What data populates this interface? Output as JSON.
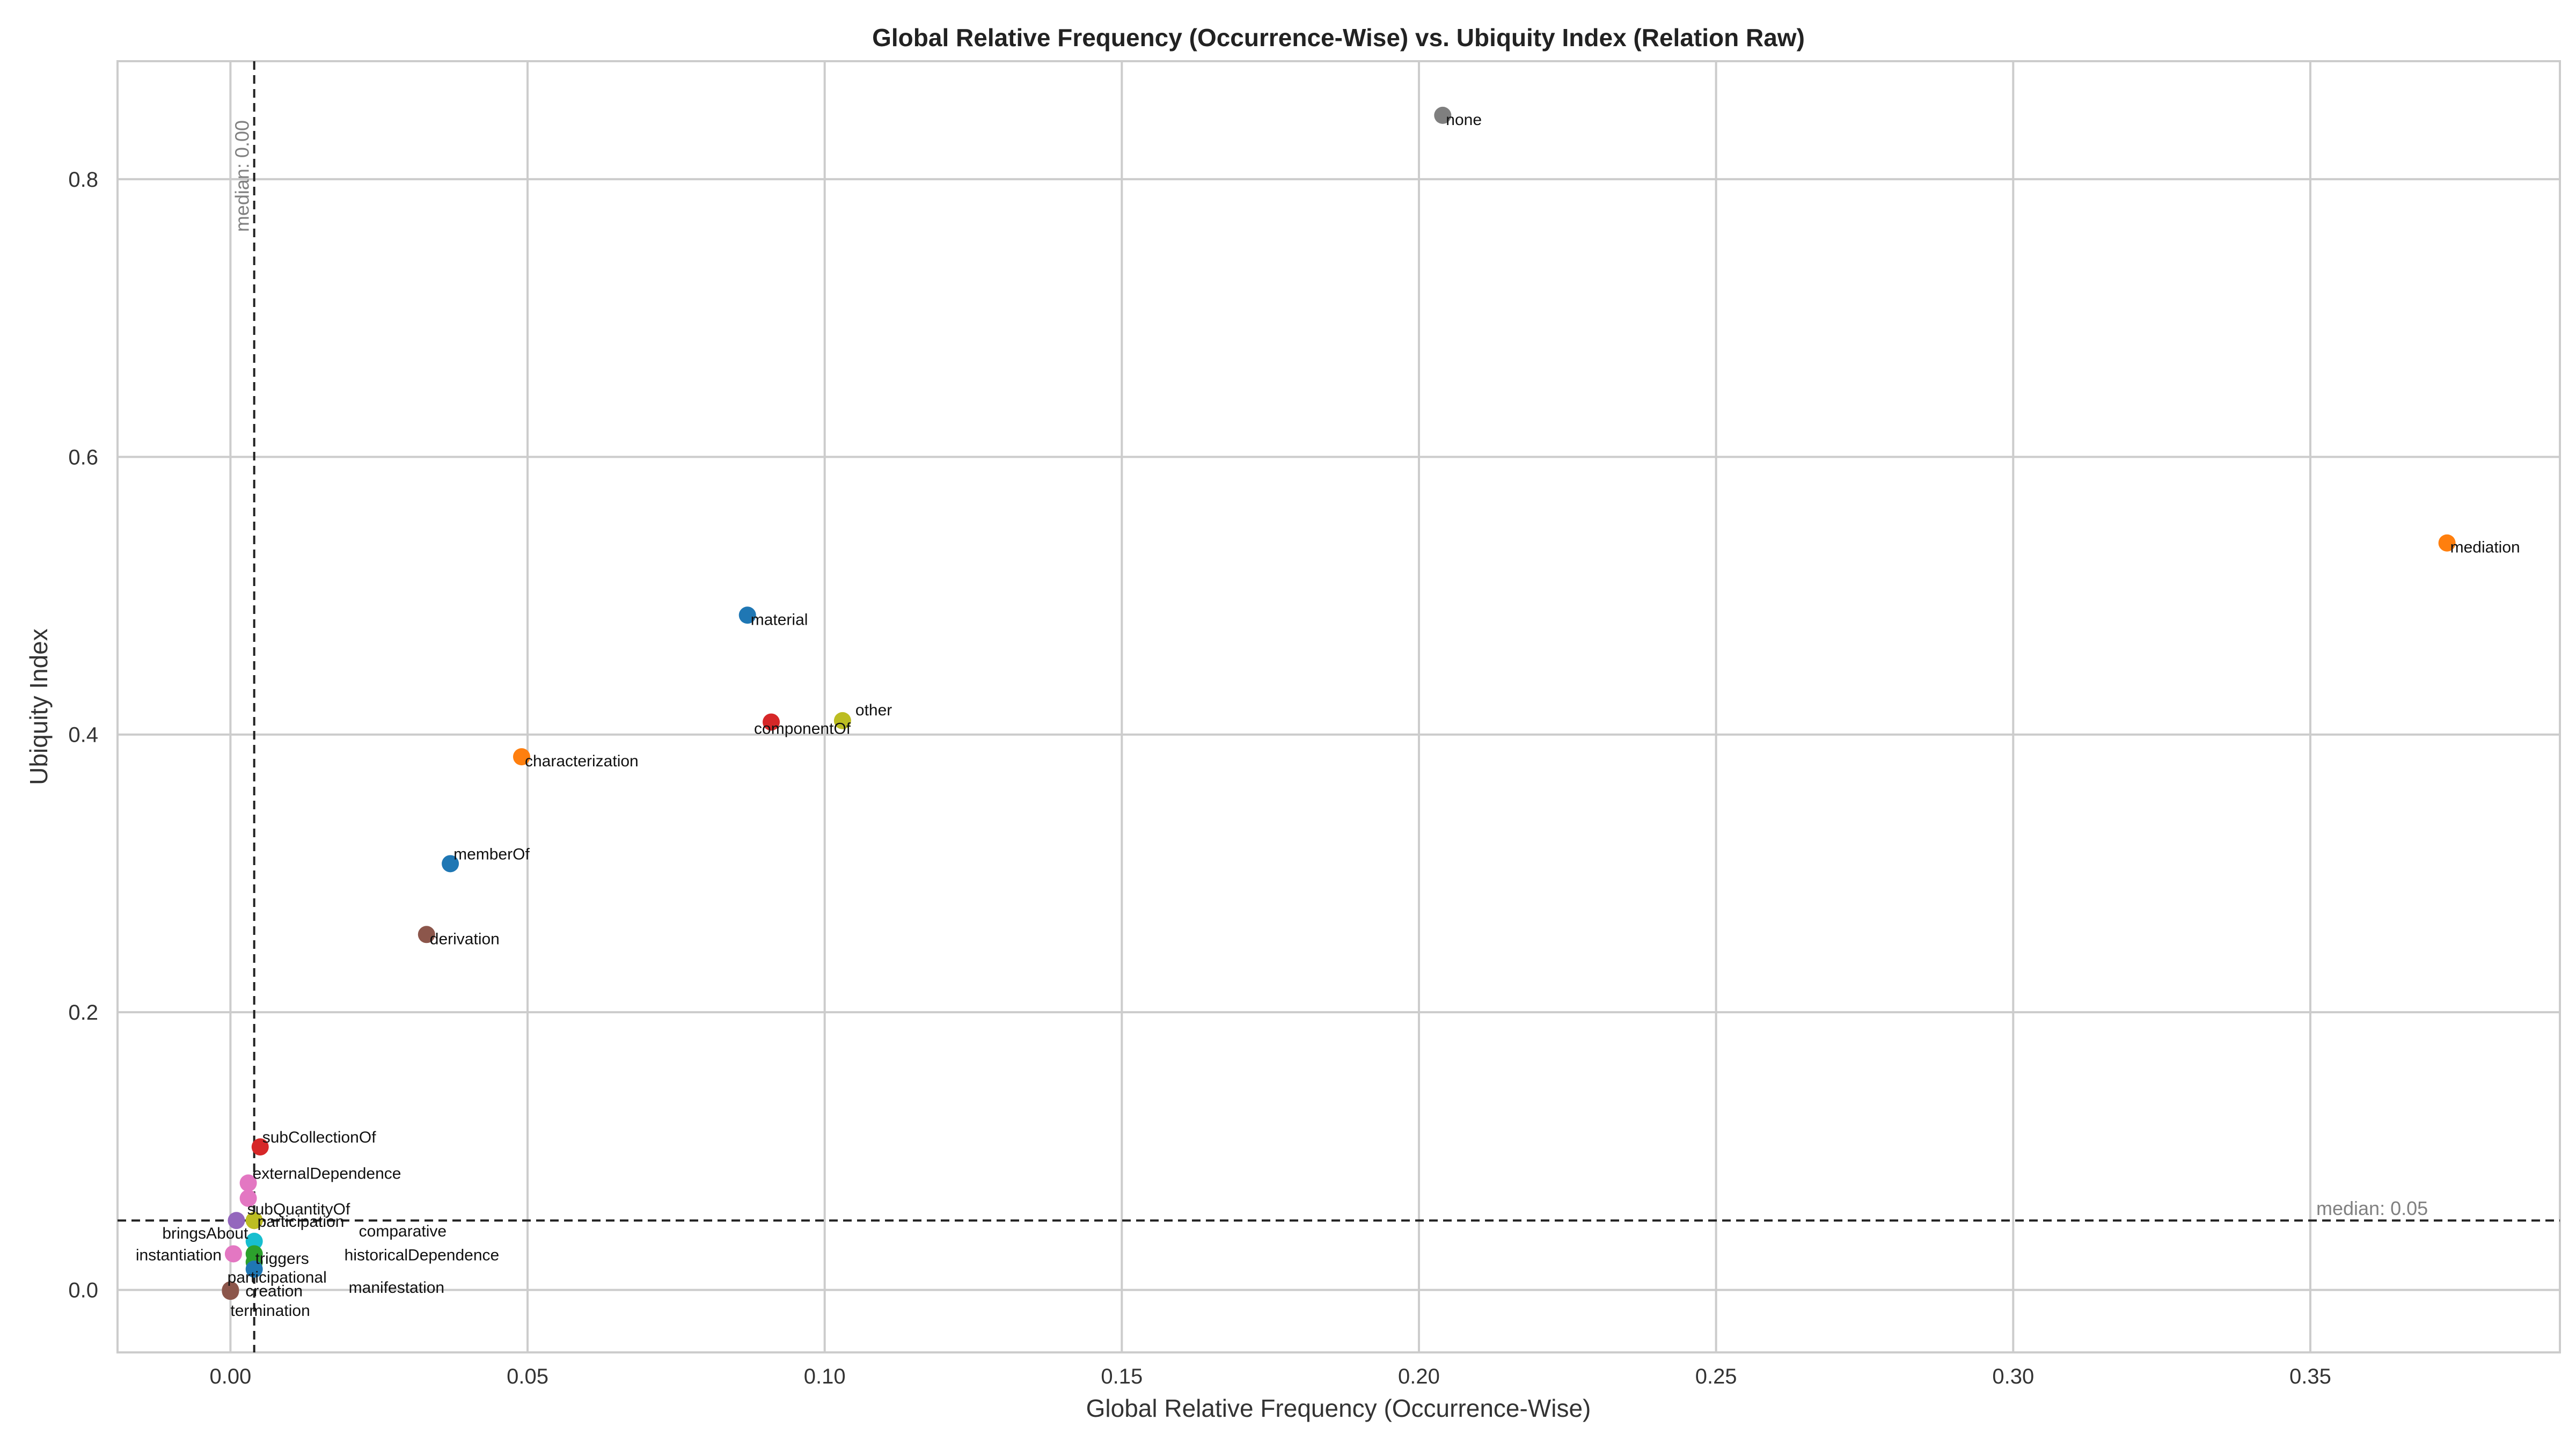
{
  "chart_data": {
    "type": "scatter",
    "title": "Global Relative Frequency (Occurrence-Wise) vs. Ubiquity Index (Relation Raw)",
    "xlabel": "Global Relative Frequency (Occurrence-Wise)",
    "ylabel": "Ubiquity Index",
    "xlim": [
      -0.019,
      0.392
    ],
    "ylim": [
      -0.045,
      0.885
    ],
    "x_ticks": [
      "0.00",
      "0.05",
      "0.10",
      "0.15",
      "0.20",
      "0.25",
      "0.30",
      "0.35"
    ],
    "x_tick_values": [
      0,
      0.05,
      0.1,
      0.15,
      0.2,
      0.25,
      0.3,
      0.35
    ],
    "y_ticks": [
      "0.0",
      "0.2",
      "0.4",
      "0.6",
      "0.8"
    ],
    "y_tick_values": [
      0,
      0.2,
      0.4,
      0.6,
      0.8
    ],
    "grid": true,
    "median_x": {
      "value": 0.004,
      "label": "median: 0.00"
    },
    "median_y": {
      "value": 0.05,
      "label": "median: 0.05"
    },
    "points": [
      {
        "label": "none",
        "x": 0.204,
        "y": 0.846,
        "color": "#7f7f7f"
      },
      {
        "label": "mediation",
        "x": 0.373,
        "y": 0.538,
        "color": "#ff7f0e"
      },
      {
        "label": "material",
        "x": 0.087,
        "y": 0.486,
        "color": "#1f77b4"
      },
      {
        "label": "componentOf",
        "x": 0.091,
        "y": 0.409,
        "color": "#d62728"
      },
      {
        "label": "other",
        "x": 0.103,
        "y": 0.41,
        "color": "#bcbd22"
      },
      {
        "label": "characterization",
        "x": 0.049,
        "y": 0.384,
        "color": "#ff7f0e"
      },
      {
        "label": "memberOf",
        "x": 0.037,
        "y": 0.307,
        "color": "#1f77b4"
      },
      {
        "label": "derivation",
        "x": 0.033,
        "y": 0.256,
        "color": "#8c564b"
      },
      {
        "label": "subCollectionOf",
        "x": 0.005,
        "y": 0.103,
        "color": "#d62728"
      },
      {
        "label": "externalDependence",
        "x": 0.003,
        "y": 0.077,
        "color": "#e377c2"
      },
      {
        "label": "subQuantityOf",
        "x": 0.003,
        "y": 0.066,
        "color": "#e377c2"
      },
      {
        "label": "participation",
        "x": 0.004,
        "y": 0.05,
        "color": "#ff7f0e"
      },
      {
        "label": "bringsAbout",
        "x": 0.001,
        "y": 0.05,
        "color": "#9467bd"
      },
      {
        "label": "comparative",
        "x": 0.004,
        "y": 0.05,
        "color": "#bcbd22"
      },
      {
        "label": "triggers",
        "x": 0.004,
        "y": 0.035,
        "color": "#17becf"
      },
      {
        "label": "instantiation",
        "x": 0.0005,
        "y": 0.026,
        "color": "#e377c2"
      },
      {
        "label": "historicalDependence",
        "x": 0.004,
        "y": 0.026,
        "color": "#2ca02c"
      },
      {
        "label": "participational",
        "x": 0.004,
        "y": 0.02,
        "color": "#2ca02c"
      },
      {
        "label": "manifestation",
        "x": 0.004,
        "y": 0.015,
        "color": "#1f77b4"
      },
      {
        "label": "creation",
        "x": 0.0,
        "y": 0.0,
        "color": "#8c564b"
      },
      {
        "label": "termination",
        "x": 0.0,
        "y": -0.001,
        "color": "#8c564b"
      }
    ]
  }
}
